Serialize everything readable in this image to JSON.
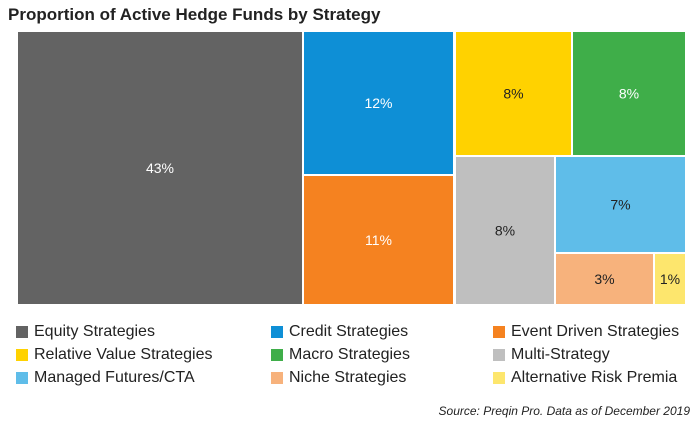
{
  "title": "Proportion of Active Hedge Funds by Strategy",
  "source": "Source: Preqin Pro. Data as of December 2019",
  "chart_data": {
    "type": "treemap",
    "title": "Proportion of Active Hedge Funds by Strategy",
    "unit": "%",
    "items": [
      {
        "name": "Equity Strategies",
        "value": 43,
        "label": "43%",
        "color": "#636363",
        "label_color": "#ffffff"
      },
      {
        "name": "Credit Strategies",
        "value": 12,
        "label": "12%",
        "color": "#0e8fd6",
        "label_color": "#ffffff"
      },
      {
        "name": "Event Driven Strategies",
        "value": 11,
        "label": "11%",
        "color": "#f58220",
        "label_color": "#ffffff"
      },
      {
        "name": "Relative Value Strategies",
        "value": 8,
        "label": "8%",
        "color": "#ffd200",
        "label_color": "#222222"
      },
      {
        "name": "Macro Strategies",
        "value": 8,
        "label": "8%",
        "color": "#3fae49",
        "label_color": "#ffffff"
      },
      {
        "name": "Multi-Strategy",
        "value": 8,
        "label": "8%",
        "color": "#bfbfbf",
        "label_color": "#222222"
      },
      {
        "name": "Managed Futures/CTA",
        "value": 7,
        "label": "7%",
        "color": "#5fbde9",
        "label_color": "#222222"
      },
      {
        "name": "Niche Strategies",
        "value": 3,
        "label": "3%",
        "color": "#f7b27c",
        "label_color": "#222222"
      },
      {
        "name": "Alternative Risk Premia",
        "value": 1,
        "label": "1%",
        "color": "#fde66d",
        "label_color": "#222222"
      }
    ],
    "legend_position": "bottom"
  }
}
